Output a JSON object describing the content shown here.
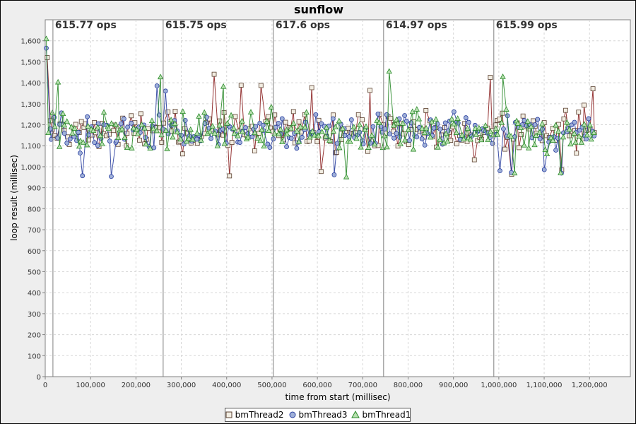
{
  "chart_data": {
    "type": "scatter",
    "title": "sunflow",
    "xlabel": "time from start (millisec)",
    "ylabel": "loop result (millisec)",
    "xlim": [
      0,
      1290000
    ],
    "ylim": [
      0,
      1700
    ],
    "x_ticks": [
      0,
      100000,
      200000,
      300000,
      400000,
      500000,
      600000,
      700000,
      800000,
      900000,
      1000000,
      1100000,
      1200000
    ],
    "x_tick_labels": [
      "0",
      "100,000",
      "200,000",
      "300,000",
      "400,000",
      "500,000",
      "600,000",
      "700,000",
      "800,000",
      "900,000",
      "1,000,000",
      "1,100,000",
      "1,200,000"
    ],
    "y_ticks": [
      0,
      100,
      200,
      300,
      400,
      500,
      600,
      700,
      800,
      900,
      1000,
      1100,
      1200,
      1300,
      1400,
      1500,
      1600
    ],
    "y_tick_labels": [
      "0",
      "100",
      "200",
      "300",
      "400",
      "500",
      "600",
      "700",
      "800",
      "900",
      "1,000",
      "1,100",
      "1,200",
      "1,300",
      "1,400",
      "1,500",
      "1,600"
    ],
    "grid": true,
    "legend_position": "bottom",
    "series": [
      {
        "name": "bmThread2",
        "marker": "square",
        "line_color": "#8b2020",
        "marker_fill": "#f2ede2",
        "marker_stroke": "#5a4030"
      },
      {
        "name": "bmThread3",
        "marker": "circle",
        "line_color": "#2a3fa0",
        "marker_fill": "#9fb0d8",
        "marker_stroke": "#2a3fa0"
      },
      {
        "name": "bmThread1",
        "marker": "triangle",
        "line_color": "#2a8a2a",
        "marker_fill": "#b8e0b0",
        "marker_stroke": "#2a8a2a"
      }
    ],
    "point_range": {
      "x_start": 1000,
      "x_end": 1215000,
      "typical_min": 1000,
      "typical_max": 1350,
      "center": 1170
    },
    "phase_markers": [
      {
        "x": 17000,
        "label": "615.77 ops"
      },
      {
        "x": 260000,
        "label": "615.75 ops"
      },
      {
        "x": 503000,
        "label": "617.6 ops"
      },
      {
        "x": 746000,
        "label": "614.97 ops"
      },
      {
        "x": 989000,
        "label": "615.99 ops"
      }
    ]
  }
}
